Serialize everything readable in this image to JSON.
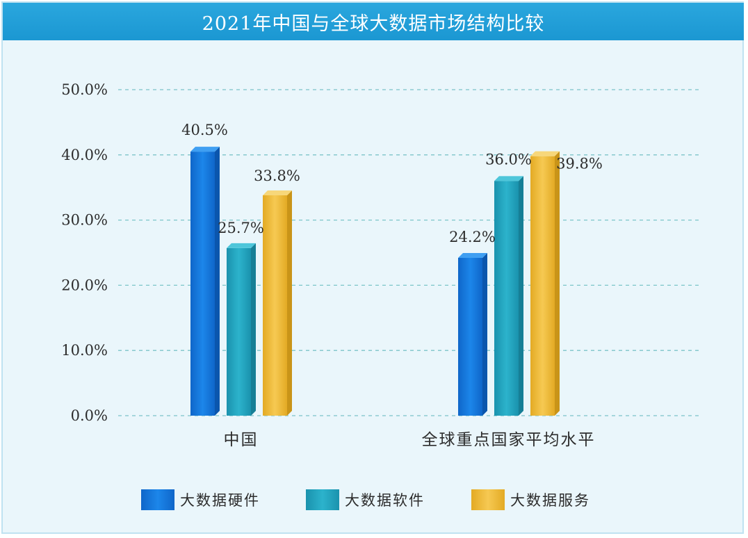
{
  "title": "2021年中国与全球大数据市场结构比较",
  "chart_data": {
    "type": "bar",
    "title": "2021年中国与全球大数据市场结构比较",
    "xlabel": "",
    "ylabel": "",
    "categories": [
      "中国",
      "全球重点国家平均水平"
    ],
    "series": [
      {
        "name": "大数据硬件",
        "values": [
          40.5,
          24.2
        ],
        "labels": [
          "40.5%",
          "24.2%"
        ],
        "color": "#1677d9"
      },
      {
        "name": "大数据软件",
        "values": [
          25.7,
          36.0
        ],
        "labels": [
          "25.7%",
          "36.0%"
        ],
        "color": "#23a3bd"
      },
      {
        "name": "大数据服务",
        "values": [
          33.8,
          39.8
        ],
        "labels": [
          "33.8%",
          "39.8%"
        ],
        "color": "#f0be3a"
      }
    ],
    "ylim": [
      0,
      50
    ],
    "yticks": [
      "0.0%",
      "10.0%",
      "20.0%",
      "30.0%",
      "40.0%",
      "50.0%"
    ],
    "grid": true,
    "legend_position": "bottom"
  }
}
